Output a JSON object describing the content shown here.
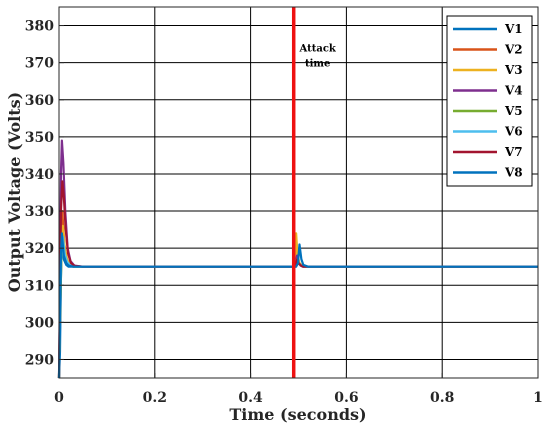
{
  "chart_data": {
    "type": "line",
    "title": "",
    "xlabel": "Time (seconds)",
    "ylabel": "Output Voltage (Volts)",
    "xlim": [
      0,
      1
    ],
    "ylim": [
      285,
      385
    ],
    "xticks": [
      0,
      0.2,
      0.4,
      0.6,
      0.8,
      1
    ],
    "xtick_labels": [
      "0",
      "0.2",
      "0.4",
      "0.6",
      "0.8",
      "1"
    ],
    "yticks": [
      290,
      300,
      310,
      320,
      330,
      340,
      350,
      360,
      370,
      380
    ],
    "ytick_labels": [
      "290",
      "300",
      "310",
      "320",
      "330",
      "340",
      "350",
      "360",
      "370",
      "380"
    ],
    "grid": true,
    "legend_position": "top-right",
    "series": [
      {
        "name": "V1",
        "color": "#0072BD",
        "x": [
          0,
          0.002,
          0.004,
          0.006,
          0.01,
          0.015,
          0.02,
          0.03,
          0.05,
          0.49,
          0.492,
          0.497,
          0.5,
          0.505,
          0.51,
          0.52,
          1
        ],
        "y": [
          285,
          292,
          312,
          322,
          317,
          315.5,
          315,
          315,
          315,
          315,
          315,
          315.5,
          316,
          315.3,
          315,
          315,
          315
        ]
      },
      {
        "name": "V2",
        "color": "#D95319",
        "x": [
          0,
          0.002,
          0.004,
          0.007,
          0.011,
          0.016,
          0.022,
          0.03,
          0.05,
          0.49,
          0.493,
          0.496,
          0.5,
          0.505,
          0.51,
          0.52,
          1
        ],
        "y": [
          285,
          300,
          322,
          330,
          321,
          317,
          315.5,
          315,
          315,
          315,
          315,
          318,
          316,
          315.3,
          315,
          315,
          315
        ]
      },
      {
        "name": "V3",
        "color": "#EDB120",
        "x": [
          0,
          0.002,
          0.005,
          0.008,
          0.012,
          0.017,
          0.023,
          0.032,
          0.05,
          0.49,
          0.492,
          0.495,
          0.498,
          0.502,
          0.507,
          0.515,
          1
        ],
        "y": [
          285,
          300,
          320,
          326,
          320,
          317,
          315.5,
          315,
          315,
          315,
          315,
          324,
          318,
          316,
          315.3,
          315,
          315
        ]
      },
      {
        "name": "V4",
        "color": "#7E2F8E",
        "x": [
          0,
          0.002,
          0.004,
          0.006,
          0.009,
          0.013,
          0.018,
          0.024,
          0.032,
          0.05,
          0.49,
          0.493,
          0.497,
          0.5,
          0.505,
          0.51,
          0.52,
          1
        ],
        "y": [
          285,
          310,
          340,
          349,
          343,
          330,
          320,
          316.5,
          315.3,
          315,
          315,
          315,
          318,
          316,
          315.3,
          315,
          315,
          315
        ]
      },
      {
        "name": "V5",
        "color": "#77AC30",
        "x": [
          0,
          0.002,
          0.005,
          0.008,
          0.012,
          0.017,
          0.023,
          0.032,
          0.05,
          0.49,
          0.493,
          0.497,
          0.5,
          0.505,
          0.51,
          0.52,
          1
        ],
        "y": [
          285,
          300,
          318,
          322,
          318,
          316,
          315.3,
          315,
          315,
          315,
          315,
          317,
          316,
          315.3,
          315,
          315,
          315
        ]
      },
      {
        "name": "V6",
        "color": "#4DBEEE",
        "x": [
          0,
          0.002,
          0.005,
          0.008,
          0.012,
          0.017,
          0.023,
          0.032,
          0.05,
          0.49,
          0.493,
          0.497,
          0.5,
          0.505,
          0.51,
          0.52,
          1
        ],
        "y": [
          285,
          305,
          320,
          323,
          318.5,
          316.3,
          315.4,
          315,
          315,
          315,
          315,
          317,
          316,
          315.3,
          315,
          315,
          315
        ]
      },
      {
        "name": "V7",
        "color": "#A2142F",
        "x": [
          0,
          0.002,
          0.004,
          0.007,
          0.01,
          0.014,
          0.019,
          0.025,
          0.033,
          0.05,
          0.49,
          0.493,
          0.497,
          0.5,
          0.505,
          0.51,
          0.52,
          1
        ],
        "y": [
          285,
          305,
          330,
          338,
          334,
          325,
          318.5,
          316,
          315.2,
          315,
          315,
          315,
          317,
          316,
          315.3,
          315,
          315,
          315
        ]
      },
      {
        "name": "V8",
        "color": "#0072BD",
        "x": [
          0,
          0.002,
          0.004,
          0.006,
          0.01,
          0.015,
          0.02,
          0.03,
          0.05,
          0.49,
          0.495,
          0.499,
          0.502,
          0.506,
          0.51,
          0.52,
          1
        ],
        "y": [
          285,
          298,
          318,
          324,
          318,
          316,
          315.3,
          315,
          315,
          315,
          315,
          316,
          321,
          317,
          315.5,
          315,
          315
        ]
      }
    ],
    "annotations": [
      {
        "type": "vline",
        "x": 0.49,
        "color": "#EE1111",
        "text_lines": [
          "Attack",
          "time"
        ],
        "text_y": 373
      }
    ]
  }
}
